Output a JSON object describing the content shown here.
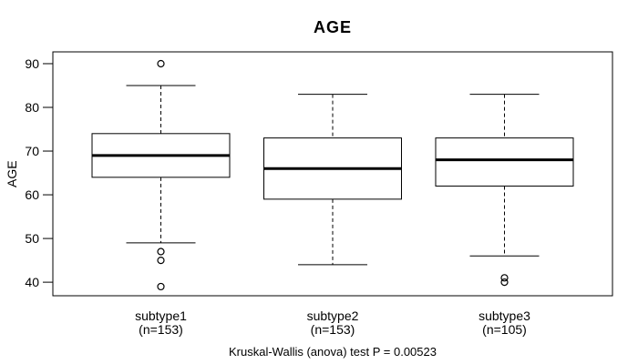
{
  "page": {
    "title": "AGE",
    "y_axis_title": "AGE",
    "footer": "Kruskal-Wallis (anova) test P = 0.00523"
  },
  "chart_data": {
    "type": "boxplot",
    "title": "AGE",
    "ylabel": "AGE",
    "xlabel": "",
    "ylim": [
      36.9,
      92.7
    ],
    "yticks": [
      40,
      50,
      60,
      70,
      80,
      90
    ],
    "grid": false,
    "legend": "none",
    "annotation": "Kruskal-Wallis (anova) test P = 0.00523",
    "categories": [
      "subtype1",
      "subtype2",
      "subtype3"
    ],
    "category_sublabels": [
      "(n=153)",
      "(n=153)",
      "(n=105)"
    ],
    "series": [
      {
        "name": "subtype1",
        "sublabel": "(n=153)",
        "whisker_low": 49,
        "q1": 64,
        "median": 69,
        "q3": 74,
        "whisker_high": 85,
        "outliers": [
          90,
          47,
          45,
          39
        ]
      },
      {
        "name": "subtype2",
        "sublabel": "(n=153)",
        "whisker_low": 44,
        "q1": 59,
        "median": 66,
        "q3": 73,
        "whisker_high": 83,
        "outliers": []
      },
      {
        "name": "subtype3",
        "sublabel": "(n=105)",
        "whisker_low": 46,
        "q1": 62,
        "median": 68,
        "q3": 73,
        "whisker_high": 83,
        "outliers": [
          41,
          40
        ]
      }
    ],
    "colors": {
      "stroke": "#000000",
      "box_fill": "#ffffff",
      "background": "#ffffff"
    }
  }
}
